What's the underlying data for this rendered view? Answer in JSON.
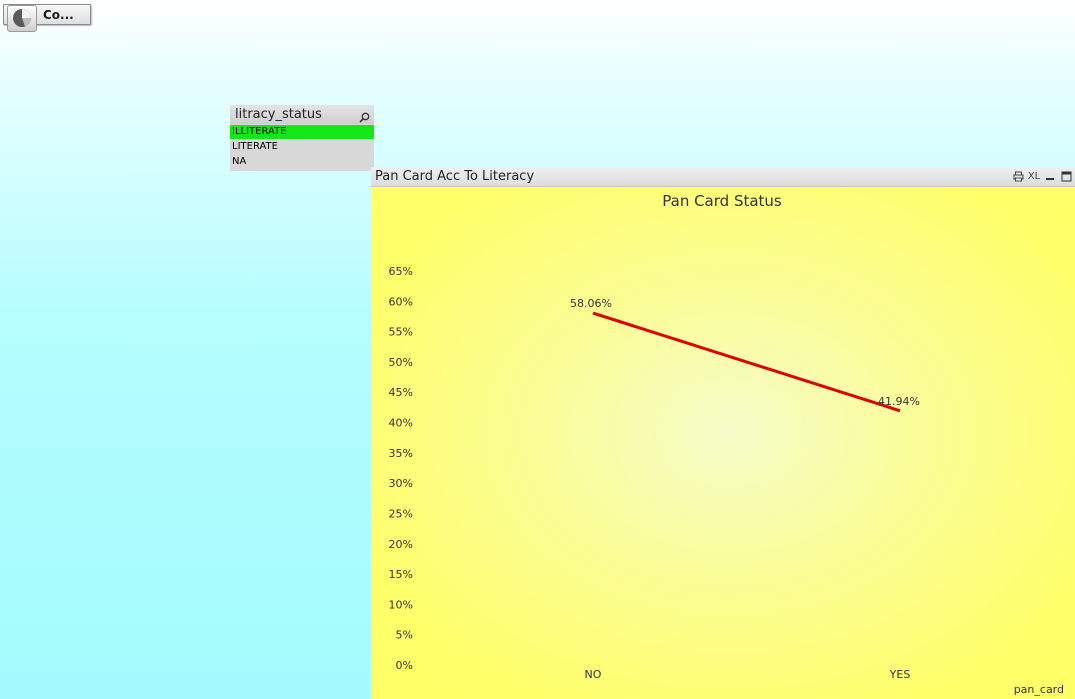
{
  "top_button": {
    "label": "Co...",
    "icon": "pie-chart-icon"
  },
  "listbox": {
    "title": "litracy_status",
    "search_icon": "search-icon",
    "selected_color": "#14e617",
    "items": [
      {
        "label": "ILLITERATE",
        "selected": true
      },
      {
        "label": "LITERATE",
        "selected": false
      },
      {
        "label": "NA",
        "selected": false
      }
    ]
  },
  "chart_object": {
    "caption": "Pan Card Acc To Literacy",
    "caption_icons": [
      "print-icon",
      "xl-icon",
      "minimize-icon",
      "maximize-icon"
    ],
    "xl_label": "XL"
  },
  "chart_data": {
    "type": "line",
    "title": "Pan Card Status",
    "xlabel": "pan_card",
    "ylabel": "",
    "categories": [
      "NO",
      "YES"
    ],
    "series": [
      {
        "values": [
          58.06,
          41.94
        ],
        "color": "#e00000"
      }
    ],
    "data_labels": [
      "58.06%",
      "41.94%"
    ],
    "ylim": [
      0,
      65
    ],
    "yticks": [
      "0%",
      "5%",
      "10%",
      "15%",
      "20%",
      "25%",
      "30%",
      "35%",
      "40%",
      "45%",
      "50%",
      "55%",
      "60%",
      "65%"
    ],
    "grid": false,
    "legend": "none"
  }
}
